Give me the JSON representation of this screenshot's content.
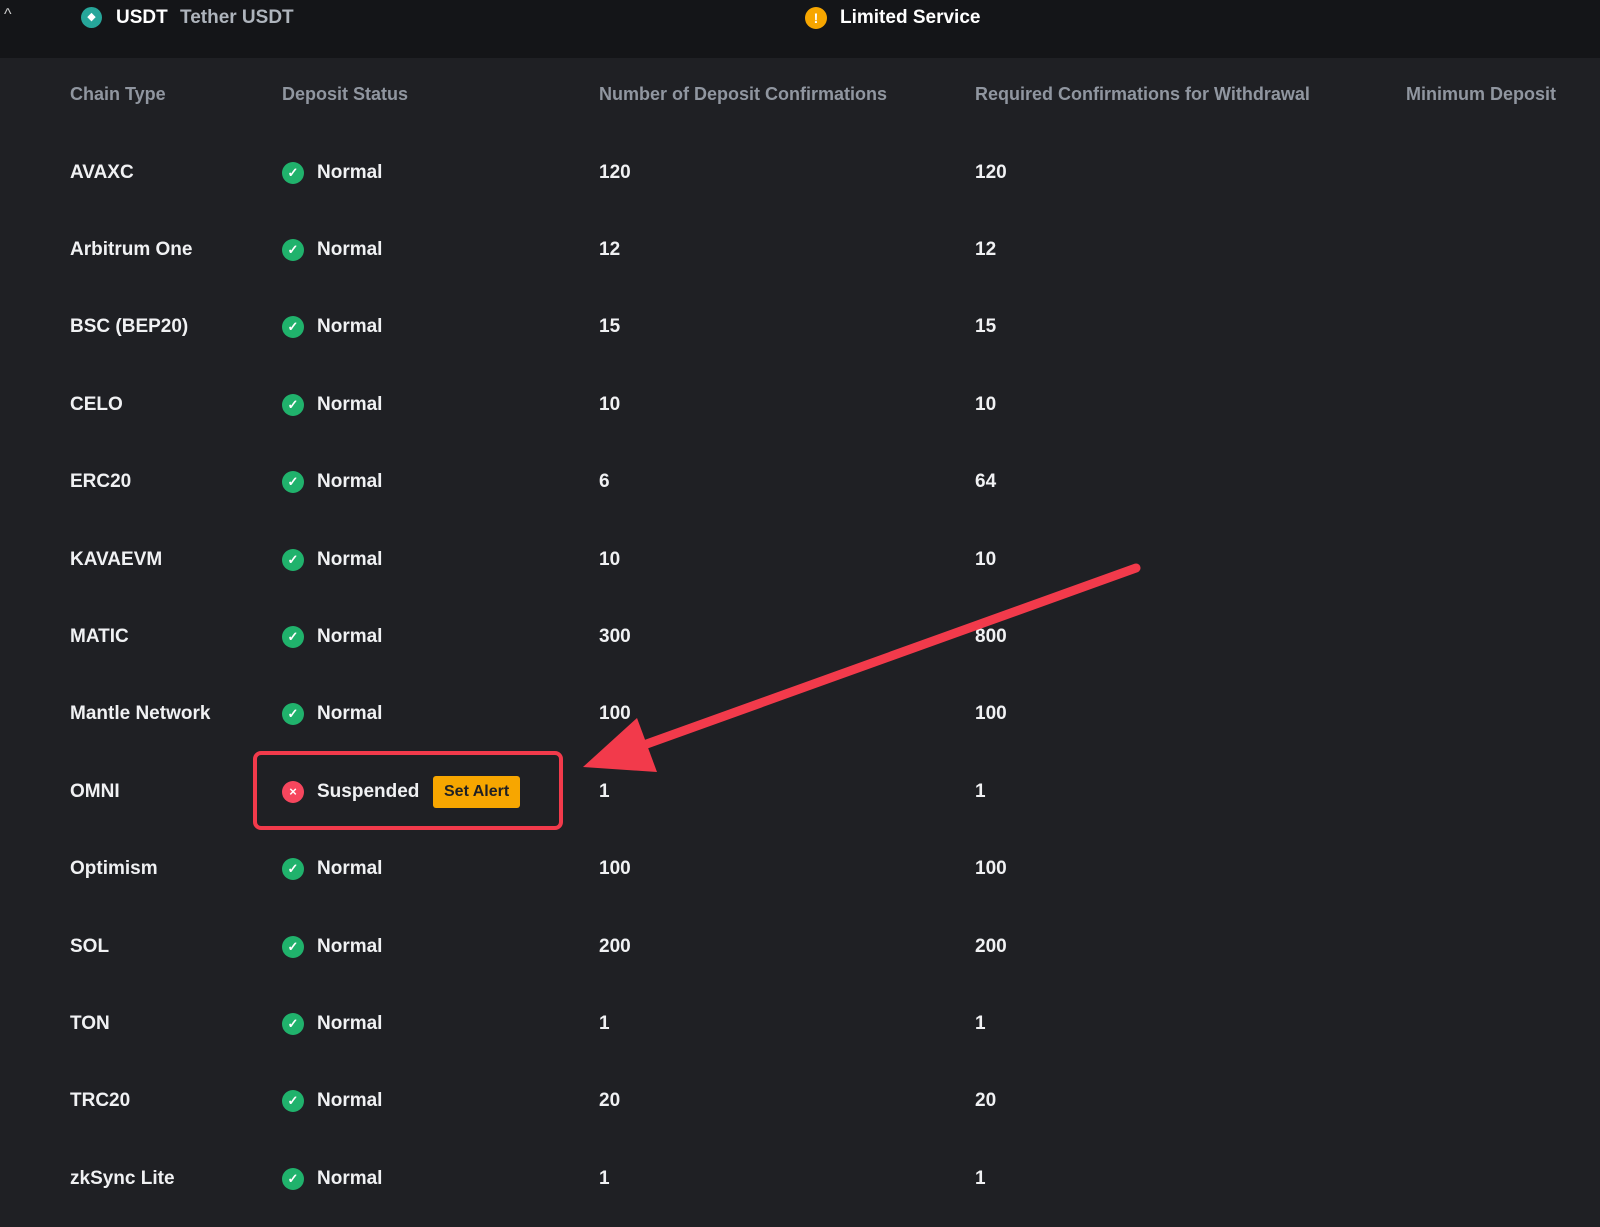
{
  "header": {
    "symbol": "USDT",
    "name": "Tether USDT",
    "status": "Limited Service"
  },
  "columns": [
    "Chain Type",
    "Deposit Status",
    "Number of Deposit Confirmations",
    "Required Confirmations for Withdrawal",
    "Minimum Deposit"
  ],
  "set_alert_label": "Set Alert",
  "colors": {
    "normal": "#20b26c",
    "suspended": "#f6465d",
    "accent": "#f7a600",
    "annotation": "#f23a4b"
  },
  "rows": [
    {
      "chain": "AVAXC",
      "status": "Normal",
      "deposit_conf": "120",
      "withdraw_conf": "120"
    },
    {
      "chain": "Arbitrum One",
      "status": "Normal",
      "deposit_conf": "12",
      "withdraw_conf": "12"
    },
    {
      "chain": "BSC (BEP20)",
      "status": "Normal",
      "deposit_conf": "15",
      "withdraw_conf": "15"
    },
    {
      "chain": "CELO",
      "status": "Normal",
      "deposit_conf": "10",
      "withdraw_conf": "10"
    },
    {
      "chain": "ERC20",
      "status": "Normal",
      "deposit_conf": "6",
      "withdraw_conf": "64"
    },
    {
      "chain": "KAVAEVM",
      "status": "Normal",
      "deposit_conf": "10",
      "withdraw_conf": "10"
    },
    {
      "chain": "MATIC",
      "status": "Normal",
      "deposit_conf": "300",
      "withdraw_conf": "800"
    },
    {
      "chain": "Mantle Network",
      "status": "Normal",
      "deposit_conf": "100",
      "withdraw_conf": "100"
    },
    {
      "chain": "OMNI",
      "status": "Suspended",
      "deposit_conf": "1",
      "withdraw_conf": "1"
    },
    {
      "chain": "Optimism",
      "status": "Normal",
      "deposit_conf": "100",
      "withdraw_conf": "100"
    },
    {
      "chain": "SOL",
      "status": "Normal",
      "deposit_conf": "200",
      "withdraw_conf": "200"
    },
    {
      "chain": "TON",
      "status": "Normal",
      "deposit_conf": "1",
      "withdraw_conf": "1"
    },
    {
      "chain": "TRC20",
      "status": "Normal",
      "deposit_conf": "20",
      "withdraw_conf": "20"
    },
    {
      "chain": "zkSync Lite",
      "status": "Normal",
      "deposit_conf": "1",
      "withdraw_conf": "1"
    }
  ]
}
